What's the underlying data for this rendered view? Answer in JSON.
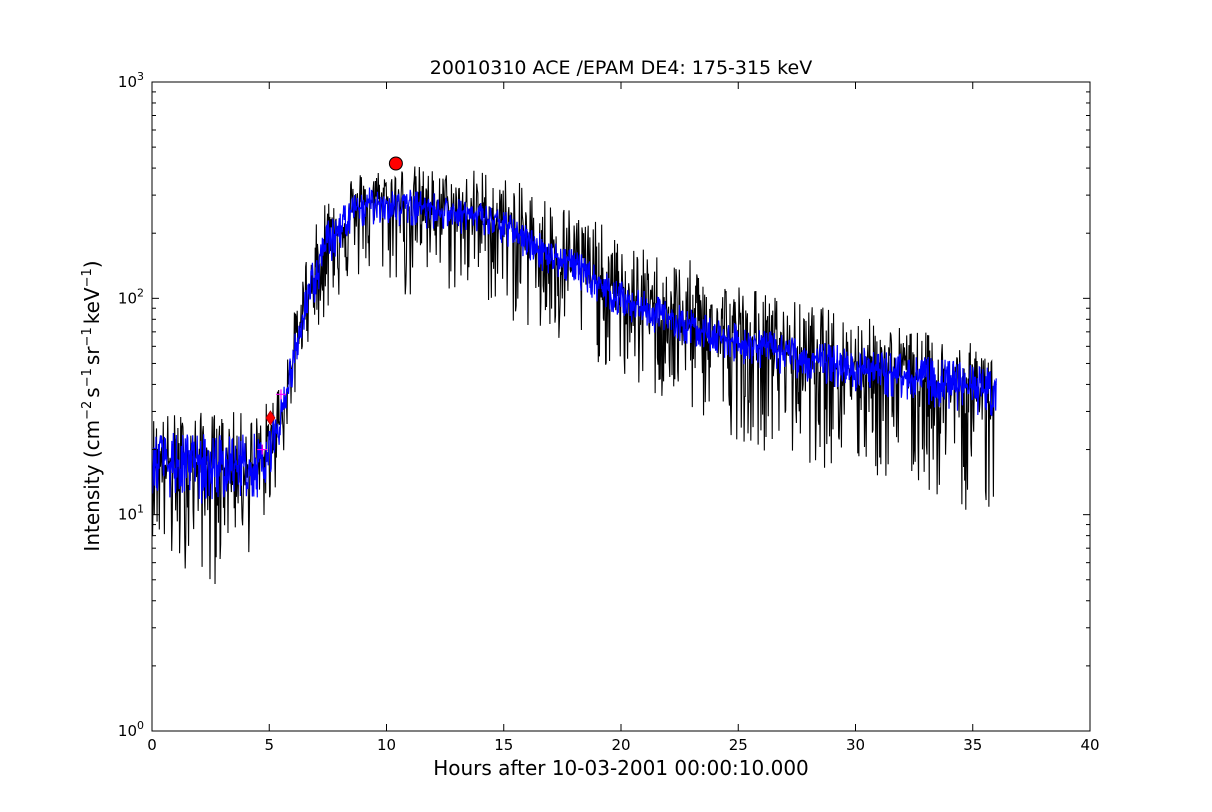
{
  "chart_data": {
    "type": "line",
    "title": "20010310 ACE /EPAM DE4: 175-315 keV",
    "xlabel": "Hours after 10-03-2001 00:00:10.000",
    "ylabel_parts": [
      "Intensity (cm",
      "−2",
      "s",
      "−1",
      "sr",
      "−1",
      "keV",
      "−1",
      ")"
    ],
    "xlim": [
      0,
      40
    ],
    "ylim": [
      1,
      1000
    ],
    "yscale": "log",
    "grid": false,
    "legend": "none",
    "x_ticks": [
      0,
      5,
      10,
      15,
      20,
      25,
      30,
      35,
      40
    ],
    "x_tick_labels": [
      "0",
      "5",
      "10",
      "15",
      "20",
      "25",
      "30",
      "35",
      "40"
    ],
    "y_ticks": [
      1,
      10,
      100,
      1000
    ],
    "y_tick_labels": [
      {
        "base": "10",
        "exp": "0"
      },
      {
        "base": "10",
        "exp": "1"
      },
      {
        "base": "10",
        "exp": "2"
      },
      {
        "base": "10",
        "exp": "3"
      }
    ],
    "series": [
      {
        "color": "#000000",
        "role": "raw",
        "x": [
          0.0,
          0.5,
          1.0,
          1.5,
          2.0,
          2.5,
          3.0,
          3.5,
          4.0,
          4.5,
          5.0,
          5.5,
          6.0,
          6.5,
          7.0,
          7.5,
          8.0,
          8.5,
          9.0,
          9.5,
          10.0,
          11.0,
          12.0,
          13.0,
          14.0,
          15.0,
          16.0,
          17.0,
          18.0,
          19.0,
          20.0,
          21.0,
          22.0,
          23.0,
          24.0,
          25.0,
          26.0,
          27.0,
          28.0,
          29.0,
          30.0,
          31.0,
          32.0,
          33.0,
          34.0,
          35.0,
          36.0
        ],
        "center": [
          17,
          17,
          17,
          17,
          17,
          17,
          17,
          17,
          17,
          17,
          20,
          28,
          50,
          90,
          130,
          180,
          210,
          240,
          270,
          280,
          280,
          270,
          265,
          250,
          240,
          220,
          190,
          160,
          145,
          120,
          100,
          90,
          82,
          75,
          68,
          63,
          60,
          56,
          52,
          50,
          48,
          46,
          44,
          42,
          40,
          38,
          38
        ],
        "upper": [
          30,
          30,
          30,
          30,
          30,
          30,
          30,
          30,
          30,
          30,
          35,
          45,
          80,
          150,
          220,
          330,
          380,
          390,
          390,
          400,
          410,
          420,
          400,
          380,
          410,
          370,
          330,
          300,
          270,
          230,
          180,
          170,
          160,
          150,
          130,
          120,
          110,
          100,
          95,
          90,
          85,
          80,
          75,
          70,
          65,
          62,
          60
        ],
        "lower": [
          8,
          6,
          4,
          6,
          6,
          4,
          6,
          8,
          6,
          8,
          10,
          16,
          28,
          60,
          70,
          80,
          100,
          110,
          120,
          110,
          120,
          90,
          110,
          100,
          100,
          80,
          70,
          50,
          60,
          50,
          40,
          35,
          30,
          28,
          25,
          22,
          20,
          18,
          17,
          16,
          15,
          14,
          13,
          12,
          11,
          10,
          10
        ]
      },
      {
        "color": "#0000ff",
        "role": "smoothed",
        "x": [
          0.0,
          0.5,
          1.0,
          1.5,
          2.0,
          2.5,
          3.0,
          3.5,
          4.0,
          4.5,
          5.0,
          5.5,
          6.0,
          6.5,
          7.0,
          7.5,
          8.0,
          8.5,
          9.0,
          9.5,
          10.0,
          11.0,
          12.0,
          13.0,
          14.0,
          15.0,
          16.0,
          17.0,
          18.0,
          19.0,
          20.0,
          21.0,
          22.0,
          23.0,
          24.0,
          25.0,
          26.0,
          27.0,
          28.0,
          29.0,
          30.0,
          31.0,
          32.0,
          33.0,
          34.0,
          35.0,
          36.0
        ],
        "center": [
          17,
          17,
          17,
          17,
          17,
          17,
          17,
          17,
          17,
          17,
          20,
          28,
          50,
          90,
          130,
          180,
          210,
          240,
          270,
          280,
          280,
          270,
          265,
          250,
          240,
          220,
          190,
          160,
          145,
          120,
          100,
          90,
          82,
          75,
          68,
          63,
          60,
          56,
          52,
          50,
          48,
          46,
          44,
          42,
          40,
          38,
          38
        ],
        "upper": [
          24,
          24,
          24,
          24,
          24,
          24,
          24,
          24,
          24,
          24,
          26,
          35,
          62,
          115,
          165,
          230,
          270,
          300,
          320,
          330,
          330,
          320,
          310,
          290,
          280,
          255,
          220,
          190,
          170,
          140,
          120,
          108,
          98,
          90,
          82,
          76,
          72,
          68,
          64,
          62,
          60,
          58,
          56,
          54,
          52,
          50,
          48
        ],
        "lower": [
          12,
          12,
          12,
          12,
          11,
          11,
          12,
          12,
          12,
          12,
          15,
          22,
          40,
          70,
          100,
          140,
          160,
          180,
          210,
          220,
          220,
          210,
          210,
          200,
          190,
          175,
          150,
          125,
          115,
          95,
          80,
          72,
          66,
          60,
          55,
          50,
          47,
          44,
          41,
          39,
          37,
          35,
          34,
          32,
          30,
          29,
          28
        ]
      }
    ],
    "markers": [
      {
        "shape": "circle",
        "x": 10.4,
        "y": 420,
        "color": "#ff0000"
      },
      {
        "shape": "diamond",
        "x": 5.05,
        "y": 28,
        "color": "#ff0000"
      },
      {
        "shape": "plus",
        "x": 4.7,
        "y": 20,
        "color": "#ff00ff"
      },
      {
        "shape": "plus",
        "x": 5.5,
        "y": 36,
        "color": "#ff00ff"
      }
    ]
  }
}
